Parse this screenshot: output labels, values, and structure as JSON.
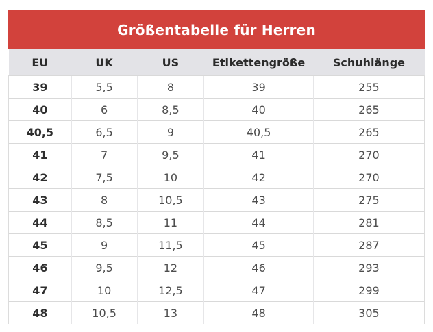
{
  "title": "Größentabelle für Herren",
  "colors": {
    "title_bar_bg": "#d2423c",
    "title_bar_top_border": "#a84540",
    "title_text": "#ffffff",
    "column_header_bg": "#e3e3e7",
    "column_header_text": "#2b2b2b",
    "body_text": "#4d4d4d",
    "eu_column_text": "#2e2e2e",
    "grid_line": "#d9d9d9",
    "page_bg": "#ffffff"
  },
  "table": {
    "columns": [
      "EU",
      "UK",
      "US",
      "Etikettengröße",
      "Schuhlänge"
    ],
    "column_keys": [
      "eu",
      "uk",
      "us",
      "etikettengroesse",
      "schuhlaenge"
    ],
    "rows": [
      [
        "39",
        "5,5",
        "8",
        "39",
        "255"
      ],
      [
        "40",
        "6",
        "8,5",
        "40",
        "265"
      ],
      [
        "40,5",
        "6,5",
        "9",
        "40,5",
        "265"
      ],
      [
        "41",
        "7",
        "9,5",
        "41",
        "270"
      ],
      [
        "42",
        "7,5",
        "10",
        "42",
        "270"
      ],
      [
        "43",
        "8",
        "10,5",
        "43",
        "275"
      ],
      [
        "44",
        "8,5",
        "11",
        "44",
        "281"
      ],
      [
        "45",
        "9",
        "11,5",
        "45",
        "287"
      ],
      [
        "46",
        "9,5",
        "12",
        "46",
        "293"
      ],
      [
        "47",
        "10",
        "12,5",
        "47",
        "299"
      ],
      [
        "48",
        "10,5",
        "13",
        "48",
        "305"
      ]
    ]
  },
  "chart_data": {
    "type": "table",
    "title": "Größentabelle für Herren",
    "columns": [
      "EU",
      "UK",
      "US",
      "Etikettengröße",
      "Schuhlänge"
    ],
    "rows": [
      [
        "39",
        "5,5",
        "8",
        "39",
        "255"
      ],
      [
        "40",
        "6",
        "8,5",
        "40",
        "265"
      ],
      [
        "40,5",
        "6,5",
        "9",
        "40,5",
        "265"
      ],
      [
        "41",
        "7",
        "9,5",
        "41",
        "270"
      ],
      [
        "42",
        "7,5",
        "10",
        "42",
        "270"
      ],
      [
        "43",
        "8",
        "10,5",
        "43",
        "275"
      ],
      [
        "44",
        "8,5",
        "11",
        "44",
        "281"
      ],
      [
        "45",
        "9",
        "11,5",
        "45",
        "287"
      ],
      [
        "46",
        "9,5",
        "12",
        "46",
        "293"
      ],
      [
        "47",
        "10",
        "12,5",
        "47",
        "299"
      ],
      [
        "48",
        "10,5",
        "13",
        "48",
        "305"
      ]
    ]
  }
}
